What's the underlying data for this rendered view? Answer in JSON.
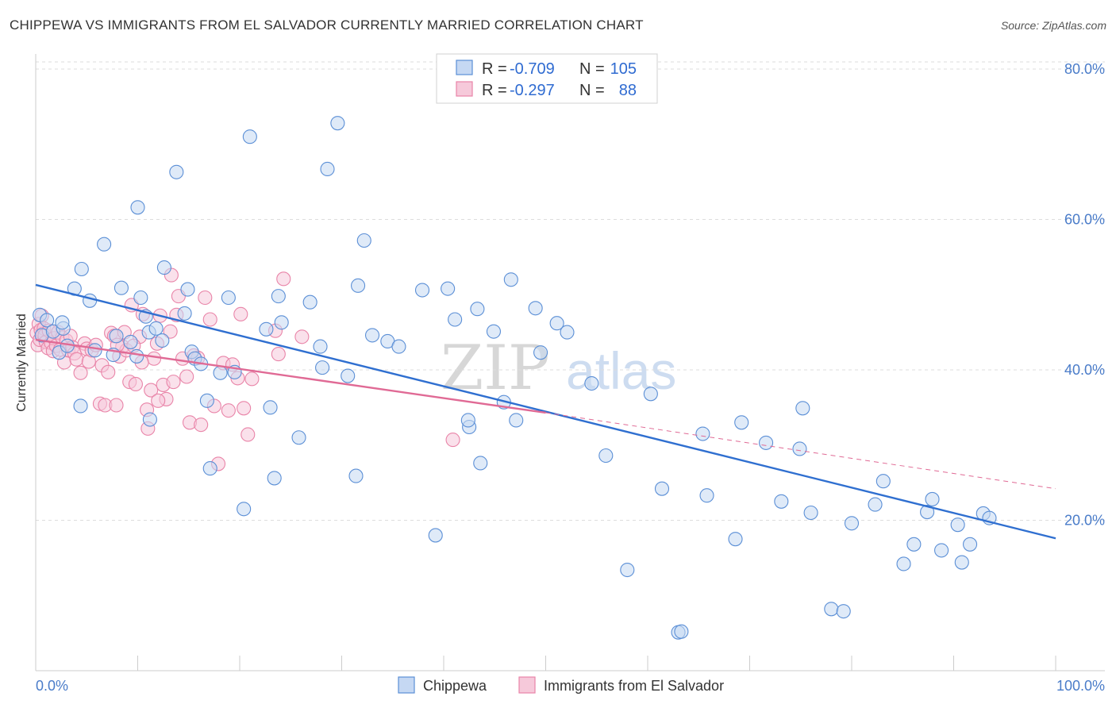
{
  "title": "CHIPPEWA VS IMMIGRANTS FROM EL SALVADOR CURRENTLY MARRIED CORRELATION CHART",
  "source": "Source: ZipAtlas.com",
  "watermark": {
    "zip": "ZIP",
    "atlas": "atlas"
  },
  "colors": {
    "chippewa": "#5b8fd6",
    "chippewa_fill": "#c5d8f3",
    "salvador": "#e984a8",
    "salvador_fill": "#f6c9da",
    "trend_blue": "#2f6fd0",
    "trend_pink": "#e06a95",
    "tick_text": "#4a7cc9",
    "grid": "#dddddd"
  },
  "legend": {
    "rows": [
      {
        "r_label": "R =",
        "r_value": "-0.709",
        "n_label": "N =",
        "n_value": "105"
      },
      {
        "r_label": "R =",
        "r_value": "-0.297",
        "n_label": "N =",
        "n_value": "88"
      }
    ]
  },
  "chart_data": {
    "type": "scatter",
    "title": "CHIPPEWA VS IMMIGRANTS FROM EL SALVADOR CURRENTLY MARRIED CORRELATION CHART",
    "xlabel": "",
    "ylabel": "Currently Married",
    "xlim": [
      0,
      100
    ],
    "ylim": [
      0,
      82
    ],
    "x_tick_labels": [
      "0.0%",
      "100.0%"
    ],
    "y_ticks": [
      20,
      40,
      60,
      80
    ],
    "y_tick_labels": [
      "20.0%",
      "40.0%",
      "60.0%",
      "80.0%"
    ],
    "grid": true,
    "legend_position": "top-center",
    "series": [
      {
        "name": "Chippewa",
        "r": -0.709,
        "n": 105,
        "trend": {
          "x": [
            0,
            100
          ],
          "y": [
            51.3,
            17.6
          ]
        },
        "points": [
          [
            0.4,
            47.3
          ],
          [
            0.6,
            44.6
          ],
          [
            1.1,
            46.6
          ],
          [
            1.7,
            45.1
          ],
          [
            2.3,
            42.3
          ],
          [
            2.7,
            45.5
          ],
          [
            3.8,
            50.8
          ],
          [
            4.5,
            53.4
          ],
          [
            5.3,
            49.2
          ],
          [
            4.4,
            35.2
          ],
          [
            5.8,
            42.6
          ],
          [
            6.7,
            56.7
          ],
          [
            7.9,
            44.5
          ],
          [
            8.4,
            50.9
          ],
          [
            9.3,
            43.7
          ],
          [
            9.9,
            41.8
          ],
          [
            10.0,
            61.6
          ],
          [
            10.3,
            49.6
          ],
          [
            10.8,
            47.1
          ],
          [
            11.1,
            45.0
          ],
          [
            11.2,
            33.4
          ],
          [
            11.8,
            45.5
          ],
          [
            12.6,
            53.6
          ],
          [
            12.4,
            43.9
          ],
          [
            13.8,
            66.3
          ],
          [
            14.6,
            47.5
          ],
          [
            14.9,
            50.7
          ],
          [
            15.3,
            42.4
          ],
          [
            15.6,
            41.5
          ],
          [
            16.2,
            40.8
          ],
          [
            16.8,
            35.9
          ],
          [
            17.1,
            26.9
          ],
          [
            18.1,
            39.6
          ],
          [
            18.9,
            49.6
          ],
          [
            19.5,
            39.7
          ],
          [
            20.4,
            21.5
          ],
          [
            21.0,
            71.0
          ],
          [
            22.6,
            45.4
          ],
          [
            23.0,
            35.0
          ],
          [
            23.4,
            25.6
          ],
          [
            23.8,
            49.8
          ],
          [
            24.1,
            46.3
          ],
          [
            25.8,
            31.0
          ],
          [
            26.9,
            49.0
          ],
          [
            27.9,
            43.1
          ],
          [
            28.1,
            40.3
          ],
          [
            28.6,
            66.7
          ],
          [
            29.6,
            72.8
          ],
          [
            30.6,
            39.2
          ],
          [
            31.4,
            25.9
          ],
          [
            31.6,
            51.2
          ],
          [
            32.2,
            57.2
          ],
          [
            33.0,
            44.6
          ],
          [
            34.5,
            43.8
          ],
          [
            35.6,
            43.1
          ],
          [
            37.9,
            50.6
          ],
          [
            39.2,
            18.0
          ],
          [
            40.4,
            50.8
          ],
          [
            41.1,
            46.7
          ],
          [
            42.5,
            32.4
          ],
          [
            42.4,
            33.3
          ],
          [
            43.3,
            48.1
          ],
          [
            43.6,
            27.6
          ],
          [
            44.9,
            45.1
          ],
          [
            45.9,
            35.7
          ],
          [
            46.6,
            52.0
          ],
          [
            47.1,
            33.3
          ],
          [
            49.0,
            48.2
          ],
          [
            49.5,
            42.3
          ],
          [
            51.1,
            46.2
          ],
          [
            52.1,
            45.0
          ],
          [
            54.5,
            38.2
          ],
          [
            55.9,
            28.6
          ],
          [
            58.0,
            13.4
          ],
          [
            60.3,
            36.8
          ],
          [
            61.4,
            24.2
          ],
          [
            63.0,
            5.1
          ],
          [
            63.3,
            5.2
          ],
          [
            65.4,
            31.5
          ],
          [
            65.8,
            23.3
          ],
          [
            68.6,
            17.5
          ],
          [
            69.2,
            33.0
          ],
          [
            71.6,
            30.3
          ],
          [
            73.1,
            22.5
          ],
          [
            74.9,
            29.5
          ],
          [
            75.2,
            34.9
          ],
          [
            76.0,
            21.0
          ],
          [
            78.0,
            8.2
          ],
          [
            79.2,
            7.9
          ],
          [
            80.0,
            19.6
          ],
          [
            82.3,
            22.1
          ],
          [
            83.1,
            25.2
          ],
          [
            85.1,
            14.2
          ],
          [
            86.1,
            16.8
          ],
          [
            87.4,
            21.1
          ],
          [
            87.9,
            22.8
          ],
          [
            88.8,
            16.0
          ],
          [
            90.4,
            19.4
          ],
          [
            90.8,
            14.4
          ],
          [
            91.6,
            16.8
          ],
          [
            92.9,
            20.9
          ],
          [
            93.5,
            20.3
          ],
          [
            2.6,
            46.3
          ],
          [
            3.1,
            43.2
          ],
          [
            7.6,
            42.0
          ]
        ]
      },
      {
        "name": "Immigrants from El Salvador",
        "r": -0.297,
        "n": 88,
        "trend": {
          "x": [
            0,
            50
          ],
          "y": [
            44.0,
            34.3
          ]
        },
        "trend_dashed": {
          "x": [
            50,
            100
          ],
          "y": [
            34.3,
            24.2
          ]
        },
        "points": [
          [
            0.1,
            44.9
          ],
          [
            0.2,
            43.3
          ],
          [
            0.3,
            46.1
          ],
          [
            0.4,
            44.0
          ],
          [
            0.5,
            45.3
          ],
          [
            0.6,
            47.2
          ],
          [
            0.7,
            44.8
          ],
          [
            0.8,
            45.5
          ],
          [
            0.9,
            44.6
          ],
          [
            1.0,
            43.7
          ],
          [
            1.2,
            42.9
          ],
          [
            1.3,
            45.2
          ],
          [
            1.5,
            43.6
          ],
          [
            1.7,
            42.5
          ],
          [
            1.8,
            44.2
          ],
          [
            2.0,
            43.2
          ],
          [
            2.2,
            45.0
          ],
          [
            2.4,
            42.7
          ],
          [
            2.6,
            44.3
          ],
          [
            2.8,
            41.0
          ],
          [
            3.0,
            43.9
          ],
          [
            3.2,
            42.6
          ],
          [
            3.4,
            44.5
          ],
          [
            3.6,
            43.0
          ],
          [
            3.8,
            42.2
          ],
          [
            4.0,
            41.4
          ],
          [
            4.4,
            39.6
          ],
          [
            4.8,
            43.5
          ],
          [
            5.0,
            42.8
          ],
          [
            5.2,
            41.1
          ],
          [
            5.5,
            42.6
          ],
          [
            5.9,
            43.3
          ],
          [
            6.3,
            35.5
          ],
          [
            6.5,
            40.6
          ],
          [
            6.8,
            35.3
          ],
          [
            7.1,
            39.7
          ],
          [
            7.4,
            44.9
          ],
          [
            7.7,
            44.5
          ],
          [
            7.9,
            35.3
          ],
          [
            8.2,
            41.8
          ],
          [
            8.5,
            43.1
          ],
          [
            8.9,
            42.6
          ],
          [
            9.2,
            38.4
          ],
          [
            9.4,
            48.6
          ],
          [
            9.8,
            38.1
          ],
          [
            10.2,
            44.4
          ],
          [
            10.5,
            47.4
          ],
          [
            10.9,
            34.7
          ],
          [
            11.0,
            32.2
          ],
          [
            11.3,
            37.3
          ],
          [
            11.6,
            41.5
          ],
          [
            11.9,
            43.5
          ],
          [
            12.2,
            47.2
          ],
          [
            12.5,
            38.0
          ],
          [
            12.8,
            36.1
          ],
          [
            13.2,
            45.1
          ],
          [
            13.5,
            38.4
          ],
          [
            13.8,
            47.3
          ],
          [
            14.0,
            49.8
          ],
          [
            14.4,
            41.5
          ],
          [
            14.8,
            39.1
          ],
          [
            15.1,
            33.0
          ],
          [
            15.5,
            41.9
          ],
          [
            15.9,
            41.6
          ],
          [
            16.2,
            32.7
          ],
          [
            16.6,
            49.6
          ],
          [
            17.1,
            46.7
          ],
          [
            17.5,
            35.2
          ],
          [
            17.9,
            27.5
          ],
          [
            18.4,
            40.9
          ],
          [
            18.9,
            34.6
          ],
          [
            19.3,
            40.7
          ],
          [
            19.8,
            38.9
          ],
          [
            20.1,
            47.4
          ],
          [
            20.4,
            34.9
          ],
          [
            20.8,
            31.4
          ],
          [
            21.2,
            38.8
          ],
          [
            23.5,
            45.2
          ],
          [
            23.8,
            42.1
          ],
          [
            24.3,
            52.1
          ],
          [
            26.1,
            44.4
          ],
          [
            40.9,
            30.7
          ],
          [
            13.3,
            52.6
          ],
          [
            12.0,
            35.9
          ],
          [
            10.4,
            41.0
          ],
          [
            9.6,
            43.2
          ],
          [
            8.7,
            45.0
          ],
          [
            8.0,
            43.3
          ]
        ]
      }
    ]
  }
}
